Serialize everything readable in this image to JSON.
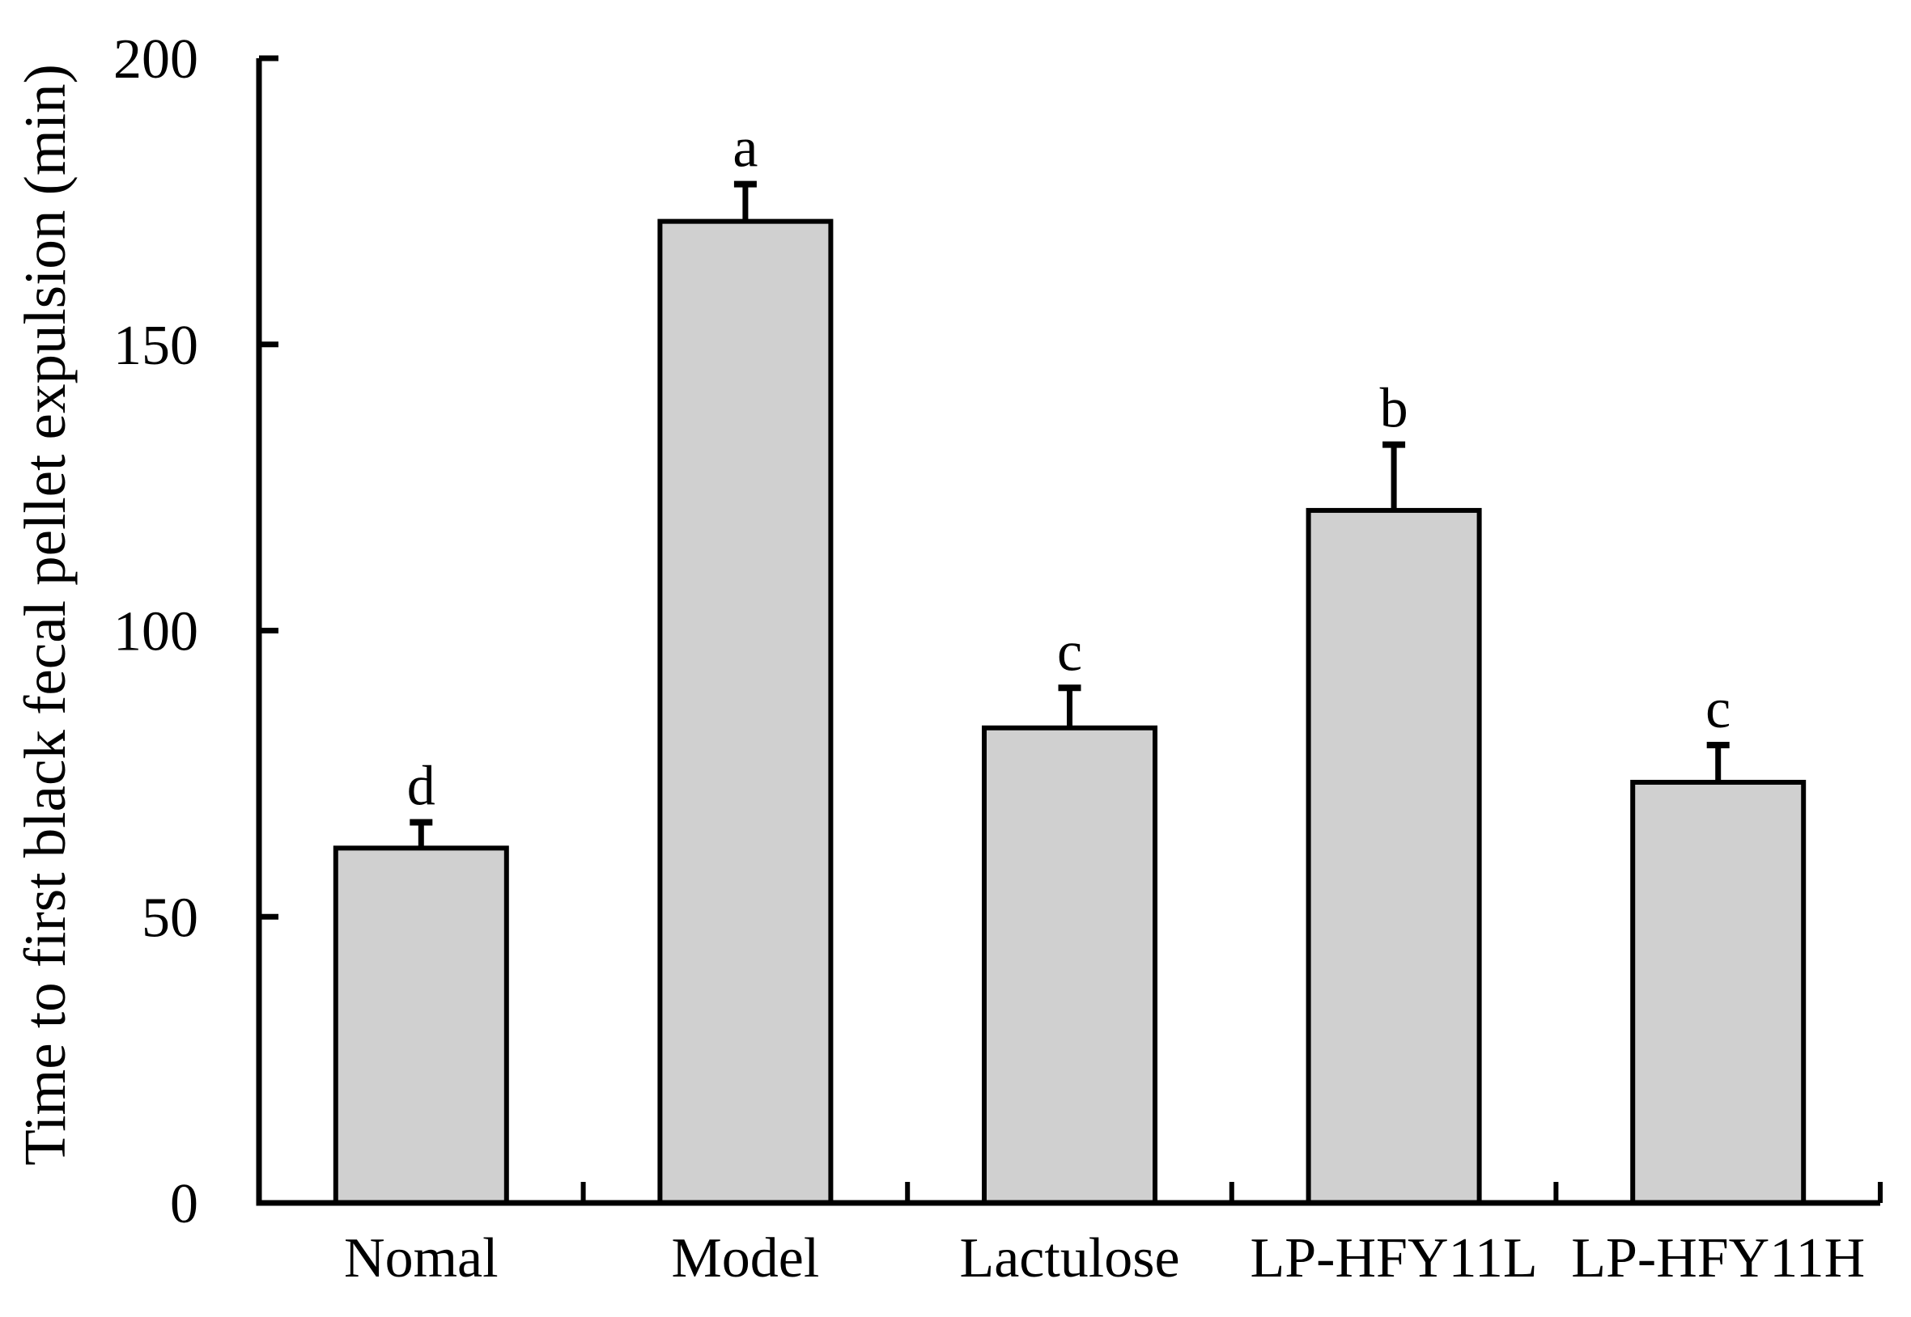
{
  "figure": {
    "background": "#ffffff",
    "bar_fill": "#d0d0d0",
    "line_color": "#000000"
  },
  "chart_data": {
    "type": "bar",
    "title": "",
    "xlabel": "",
    "ylabel": "Time to first black fecal pellet expulsion (min)",
    "ylim": [
      0,
      200
    ],
    "yticks": [
      0,
      50,
      100,
      150,
      200
    ],
    "grid": false,
    "legend": false,
    "categories": [
      "Nomal",
      "Model",
      "Lactulose",
      "LP-HFY11L",
      "LP-HFY11H"
    ],
    "values": [
      62,
      171.5,
      83,
      121,
      73.5
    ],
    "errors": [
      4.5,
      6.5,
      7,
      11.5,
      6.5
    ],
    "sig_letters": [
      "d",
      "a",
      "c",
      "b",
      "c"
    ],
    "error_bar_style": "upper cap only"
  }
}
